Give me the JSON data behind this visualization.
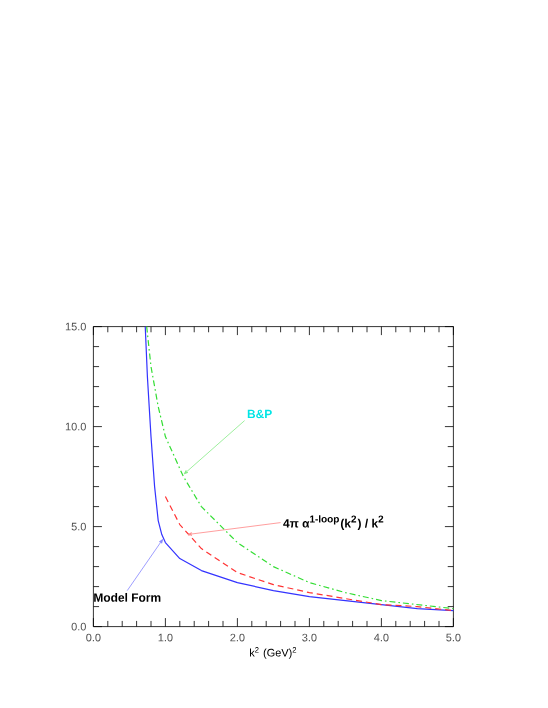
{
  "chart_data": {
    "type": "line",
    "xlabel": "k$^{2}$ (GeV)$^{2}$",
    "x": [
      0.72,
      0.75,
      0.8,
      0.85,
      0.9,
      0.95,
      1.0,
      1.2,
      1.5,
      2.0,
      2.5,
      3.0,
      3.5,
      4.0,
      4.5,
      5.0
    ],
    "series": [
      {
        "color": "#3333ff",
        "line_style": "solid",
        "values": [
          15,
          12.5,
          9.5,
          7,
          5.3,
          4.6,
          4.2,
          3.4,
          2.8,
          2.2,
          1.8,
          1.5,
          1.3,
          1.1,
          0.9,
          0.8
        ]
      },
      {
        "color": "#ff3333",
        "line_style": "dashed",
        "x": [
          1.0,
          1.2,
          1.5,
          2.0,
          2.5,
          3.0,
          3.5,
          4.0,
          4.5,
          5.0
        ],
        "values": [
          6.5,
          5.1,
          3.9,
          2.7,
          2.1,
          1.7,
          1.4,
          1.1,
          1.0,
          0.8
        ]
      },
      {
        "color": "#33dd33",
        "line_style": "dashdot",
        "x": [
          0.74,
          0.8,
          0.9,
          1.0,
          1.25,
          1.5,
          2.0,
          2.5,
          3.0,
          3.5,
          4.0,
          4.5,
          5.0
        ],
        "values": [
          15,
          13,
          11,
          9.5,
          7.5,
          6,
          4.2,
          3,
          2.2,
          1.7,
          1.3,
          1.1,
          0.9
        ]
      }
    ],
    "annotations": [
      {
        "text": "B&P",
        "x": 1.25,
        "y": 7.6
      },
      {
        "text": "4π α$^{1-loop}$(k$^{2}$) / k$^{2}$",
        "x": 1.3,
        "y": 4.6
      },
      {
        "text": "Model Form",
        "x": 0.97,
        "y": 4.4
      }
    ],
    "xlim": [
      0.0,
      5.0
    ],
    "ylim": [
      0.0,
      15.0
    ],
    "xticks": [
      {
        "value": 0,
        "label": "0.0"
      },
      {
        "value": 1,
        "label": "1.0"
      },
      {
        "value": 2,
        "label": "2.0"
      },
      {
        "value": 3,
        "label": "3.0"
      },
      {
        "value": 4,
        "label": "4.0"
      },
      {
        "value": 5,
        "label": "5.0"
      }
    ],
    "yticks": [
      {
        "value": 0,
        "label": "0.0"
      },
      {
        "value": 5,
        "label": "5.0"
      },
      {
        "value": 10,
        "label": "10.0"
      },
      {
        "value": 15,
        "label": "15.0"
      }
    ],
    "grid": false
  }
}
